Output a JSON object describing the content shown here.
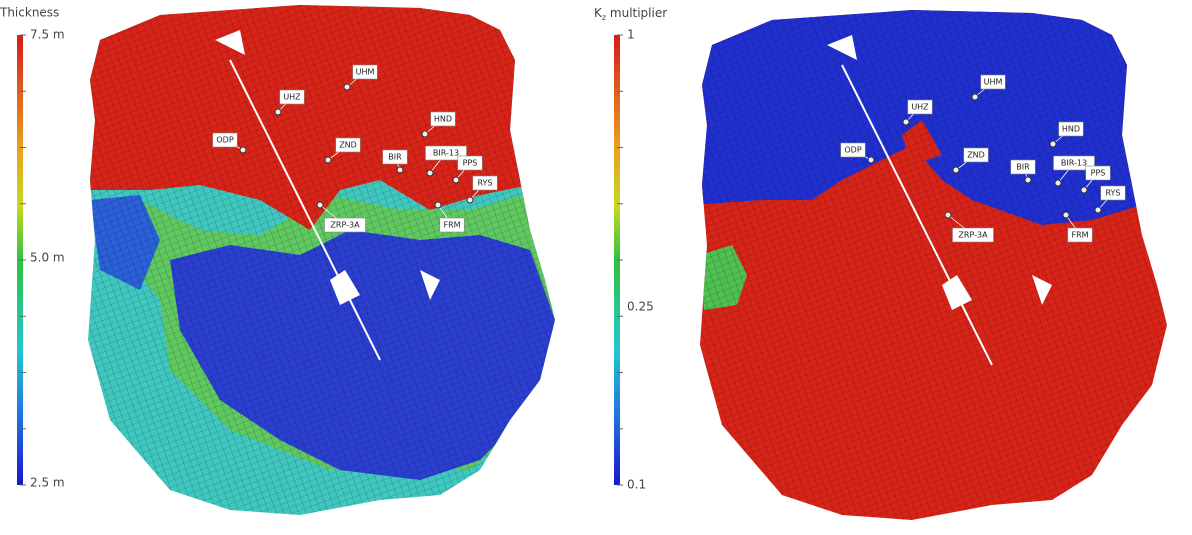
{
  "left_panel": {
    "colorbar": {
      "title": "Thickness",
      "labels": [
        "7.5 m",
        "5.0 m",
        "2.5 m"
      ]
    },
    "wells": [
      "UHM",
      "UHZ",
      "ODP",
      "ZND",
      "BIR",
      "HND",
      "BIR-13",
      "PPS",
      "RYS",
      "ZRP-3A",
      "FRM"
    ]
  },
  "right_panel": {
    "colorbar": {
      "title_main": "K",
      "title_sub": "z",
      "title_rest": " multiplier",
      "labels": [
        "1",
        "0.25",
        "0.1"
      ]
    },
    "wells": [
      "UHM",
      "UHZ",
      "ODP",
      "ZND",
      "BIR",
      "HND",
      "BIR-13",
      "PPS",
      "RYS",
      "ZRP-3A",
      "FRM"
    ]
  }
}
